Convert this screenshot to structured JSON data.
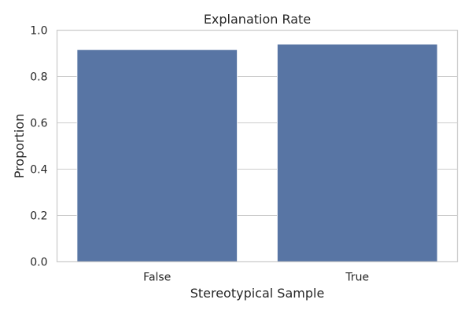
{
  "chart_data": {
    "type": "bar",
    "title": "Explanation Rate",
    "xlabel": "Stereotypical Sample",
    "ylabel": "Proportion",
    "categories": [
      "False",
      "True"
    ],
    "values": [
      0.916,
      0.94
    ],
    "ylim": [
      0,
      1.0
    ],
    "yticks": [
      "0.0",
      "0.2",
      "0.4",
      "0.6",
      "0.8",
      "1.0"
    ],
    "grid": true,
    "legend": "none",
    "colors": {
      "bar": "#5875a4",
      "grid": "#cccccc",
      "frame": "#cccccc",
      "background": "#ffffff",
      "text": "#262626"
    }
  }
}
